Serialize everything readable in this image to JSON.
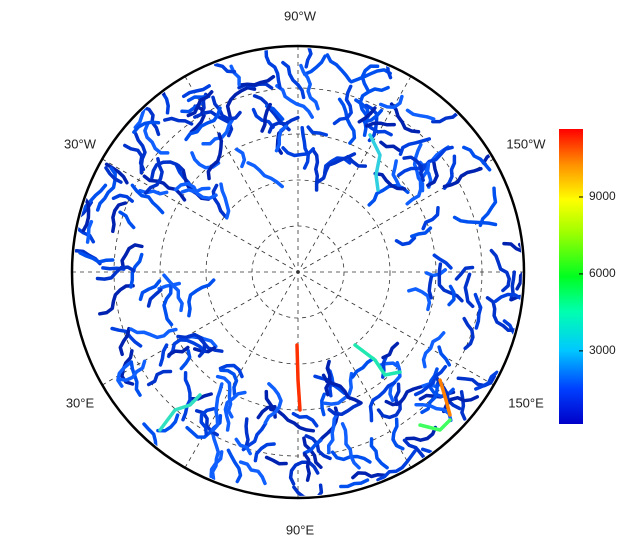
{
  "map": {
    "lon_labels": [
      "90°W",
      "30°W",
      "150°W",
      "30°E",
      "150°E",
      "90°E"
    ],
    "colorbar": {
      "range": [
        150,
        11650
      ],
      "ticks": [
        3000,
        6000,
        9000
      ]
    }
  }
}
